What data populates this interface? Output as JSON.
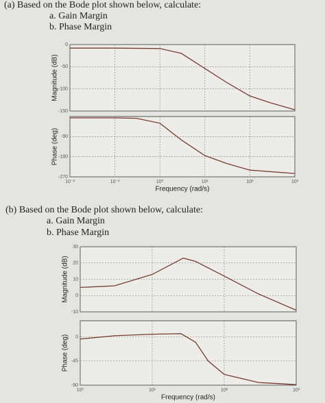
{
  "part_a": {
    "title": "(a) Based on the Bode plot shown below, calculate:",
    "items": [
      "a.  Gain Margin",
      "b.  Phase Margin"
    ]
  },
  "part_b": {
    "title": "(b) Based on the Bode plot shown below, calculate:",
    "items": [
      "a.  Gain Margin",
      "b.  Phase Margin"
    ]
  },
  "chart_data": [
    {
      "type": "line",
      "y_label": "Magnitude (dB)",
      "log_x": true,
      "grid": true,
      "xlim": [
        0.01,
        1000
      ],
      "xticks": [
        0.01,
        0.1,
        1,
        10,
        100,
        1000
      ],
      "ylim": [
        -150,
        0
      ],
      "yticks": [
        0,
        -50,
        -100,
        -150
      ],
      "x": [
        0.01,
        0.1,
        1,
        3,
        10,
        30,
        100,
        300,
        1000
      ],
      "series": [
        {
          "color": "#7a3b2e",
          "values": [
            -8,
            -8,
            -9,
            -20,
            -54,
            -85,
            -116,
            -132,
            -147
          ]
        }
      ]
    },
    {
      "type": "line",
      "y_label": "Phase (deg)",
      "x_label": "Frequency (rad/s)",
      "log_x": true,
      "grid": true,
      "xlim": [
        0.01,
        1000
      ],
      "xticks": [
        {
          "value": 0.01,
          "label": "10⁻²"
        },
        {
          "value": 0.1,
          "label": "10⁻¹"
        },
        {
          "value": 1,
          "label": "10⁰"
        },
        {
          "value": 10,
          "label": "10¹"
        },
        {
          "value": 100,
          "label": "10²"
        },
        {
          "value": 1000,
          "label": "10³"
        }
      ],
      "ylim": [
        -270,
        0
      ],
      "yticks": [
        -90,
        -180,
        -270
      ],
      "x": [
        0.01,
        0.1,
        0.3,
        1,
        3,
        10,
        30,
        100,
        1000
      ],
      "series": [
        {
          "color": "#7a3b2e",
          "values": [
            -6,
            -6,
            -8,
            -30,
            -105,
            -175,
            -210,
            -240,
            -255
          ]
        }
      ]
    },
    {
      "type": "line",
      "y_label": "Magnitude (dB)",
      "log_x": true,
      "grid": true,
      "xlim": [
        1,
        1000
      ],
      "xticks": [
        1,
        10,
        100,
        1000
      ],
      "ylim": [
        -10,
        30
      ],
      "yticks": [
        30,
        20,
        10,
        0,
        -10
      ],
      "x": [
        1,
        3,
        10,
        20,
        27,
        40,
        100,
        300,
        1000
      ],
      "series": [
        {
          "color": "#7a3b2e",
          "values": [
            5,
            6,
            13,
            20,
            23,
            21,
            12,
            1,
            -9
          ]
        }
      ]
    },
    {
      "type": "line",
      "y_label": "Phase (deg)",
      "x_label": "Frequency (rad/s)",
      "log_x": true,
      "grid": true,
      "xlim": [
        1,
        1000
      ],
      "xticks": [
        {
          "value": 1,
          "label": "10⁰"
        },
        {
          "value": 10,
          "label": "10¹"
        },
        {
          "value": 100,
          "label": "10²"
        },
        {
          "value": 1000,
          "label": "10³"
        }
      ],
      "ylim": [
        -90,
        30
      ],
      "yticks": [
        0,
        -45,
        -90
      ],
      "x": [
        1,
        3,
        10,
        25,
        40,
        60,
        100,
        300,
        1000
      ],
      "series": [
        {
          "color": "#7a3b2e",
          "values": [
            -4,
            2,
            5,
            6,
            -10,
            -45,
            -70,
            -85,
            -89
          ]
        }
      ]
    }
  ]
}
